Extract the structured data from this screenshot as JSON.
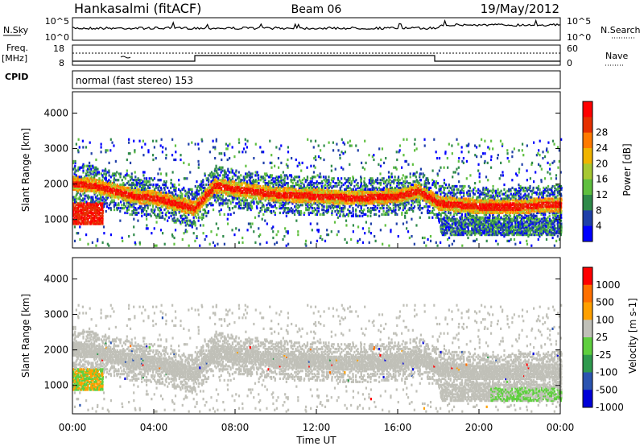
{
  "header": {
    "site": "Hankasalmi (fitACF)",
    "beam": "Beam 06",
    "date": "19/May/2012"
  },
  "nsky_panel": {
    "label": "N.Sky",
    "ticks": [
      "10^5",
      "10^0"
    ],
    "right_label": "N.Search",
    "right_ticks": [
      "10^5",
      "10^0"
    ]
  },
  "freq_panel": {
    "label_top": "Freq.",
    "label_unit": "[MHz]",
    "ticks": [
      "18",
      "8"
    ],
    "right_label": "Nave",
    "right_ticks": [
      "60",
      "0"
    ],
    "cpid_label": "CPID"
  },
  "cpid_text": "normal (fast stereo) 153",
  "colors": {
    "power": [
      "#0000ff",
      "#1f3fa8",
      "#2f8a4a",
      "#5fbf3f",
      "#a7c832",
      "#f0b400",
      "#ff7a00",
      "#e63000",
      "#ff0000"
    ],
    "velocity": [
      "#0000d8",
      "#2b54b0",
      "#2f9a4e",
      "#5fcf3f",
      "#c0c0b8",
      "#ffa000",
      "#ff7000",
      "#ff0000"
    ]
  },
  "chart_data": [
    {
      "type": "heatmap",
      "name": "power",
      "ylabel": "Slant Range [km]",
      "y_ticks": [
        "1000",
        "2000",
        "3000",
        "4000"
      ],
      "ylim": [
        200,
        4600
      ],
      "colorbar_label": "Power [dB]",
      "colorbar_ticks": [
        "4",
        "8",
        "12",
        "16",
        "20",
        "24",
        "28"
      ],
      "bands": [
        {
          "t": [
            0,
            1,
            2,
            3,
            4,
            5,
            6,
            7,
            8,
            10,
            12,
            14,
            16,
            17,
            18,
            19,
            20,
            21,
            22,
            23,
            24
          ],
          "center": [
            2050,
            2000,
            1850,
            1700,
            1650,
            1500,
            1350,
            2000,
            1900,
            1750,
            1700,
            1650,
            1700,
            1850,
            1500,
            1450,
            1400,
            1400,
            1400,
            1450,
            1450
          ]
        }
      ]
    },
    {
      "type": "heatmap",
      "name": "velocity",
      "ylabel": "Slant Range [km]",
      "y_ticks": [
        "1000",
        "2000",
        "3000",
        "4000"
      ],
      "ylim": [
        200,
        4600
      ],
      "colorbar_label": "Velocity [m s-1]",
      "colorbar_ticks": [
        "1000",
        "500",
        "100",
        "25",
        "-25",
        "-100",
        "-500",
        "-1000"
      ]
    }
  ],
  "x_axis": {
    "ticks": [
      "00:00",
      "04:00",
      "08:00",
      "12:00",
      "16:00",
      "20:00",
      "00:00"
    ],
    "xlabel": "Time UT",
    "xlim": [
      0,
      24
    ]
  }
}
